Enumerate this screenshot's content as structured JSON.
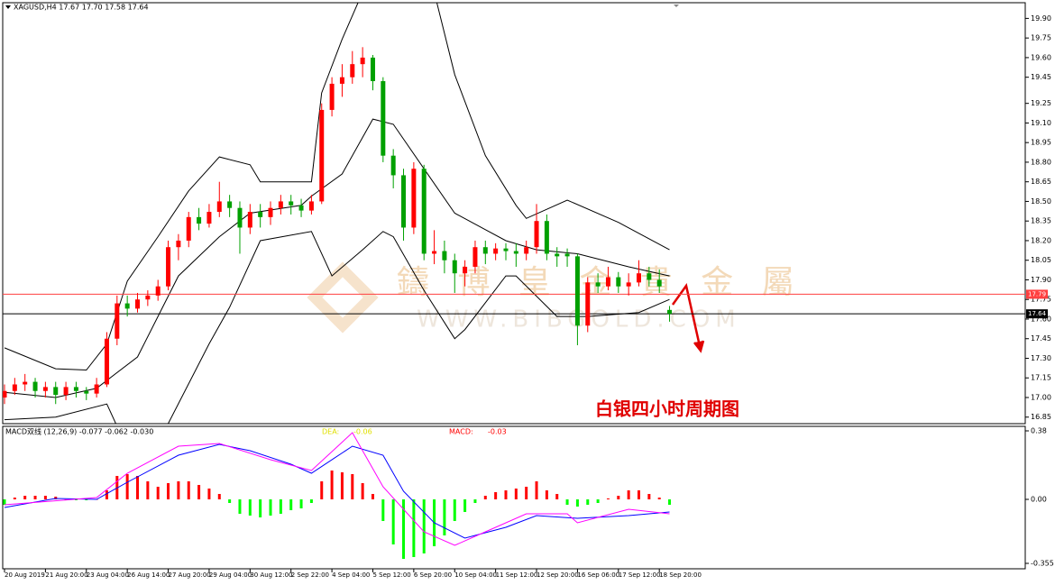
{
  "chart_data": [
    {
      "type": "candlestick",
      "title": "XAGUSD,H4  17.67 17.70 17.58 17.64",
      "annotation": "白银四小时周期图",
      "watermark": "鑄 博 皇 金 貴 金 屬",
      "watermark_url": "WWW.BIBGOLD.COM",
      "up_color": "#ff0000",
      "down_color": "#00a000",
      "band_color": "#000000",
      "xlim": [
        0,
        99.5
      ],
      "ylim": [
        16.8,
        20.02
      ],
      "xticks": [
        {
          "value": 0,
          "label": "20 Aug 2019"
        },
        {
          "value": 4,
          "label": "21 Aug 20:00"
        },
        {
          "value": 8,
          "label": "23 Aug 04:00"
        },
        {
          "value": 12,
          "label": "26 Aug 14:00"
        },
        {
          "value": 16,
          "label": "27 Aug 20:00"
        },
        {
          "value": 20,
          "label": "29 Aug 04:00"
        },
        {
          "value": 24,
          "label": "30 Aug 12:00"
        },
        {
          "value": 28,
          "label": "2 Sep 22:00"
        },
        {
          "value": 32,
          "label": "4 Sep 04:00"
        },
        {
          "value": 36,
          "label": "5 Sep 12:00"
        },
        {
          "value": 40,
          "label": "6 Sep 20:00"
        },
        {
          "value": 44,
          "label": "10 Sep 04:00"
        },
        {
          "value": 48,
          "label": "11 Sep 12:00"
        },
        {
          "value": 52,
          "label": "12 Sep 20:00"
        },
        {
          "value": 56,
          "label": "16 Sep 06:00"
        },
        {
          "value": 60,
          "label": "17 Sep 12:00"
        },
        {
          "value": 64,
          "label": "18 Sep 20:00"
        }
      ],
      "yticks": [
        {
          "value": 19.9,
          "label": "19.90"
        },
        19.75,
        {
          "value": 19.6,
          "label": "19.60"
        },
        19.45,
        19.25,
        {
          "value": 19.1,
          "label": "19.10"
        },
        18.95,
        {
          "value": 18.8,
          "label": "18.80"
        },
        18.65,
        {
          "value": 18.5,
          "label": "18.50"
        },
        18.35,
        {
          "value": 18.2,
          "label": "18.20"
        },
        18.05,
        {
          "value": 17.9,
          "label": "17.90"
        },
        17.75,
        {
          "value": 17.6,
          "label": "17.60"
        },
        17.45,
        {
          "value": 17.3,
          "label": "17.30"
        },
        17.15,
        {
          "value": 17.0,
          "label": "17.00"
        },
        16.85
      ],
      "hlines": [
        {
          "value": 17.79,
          "color": "#ff4040"
        },
        {
          "value": 17.64,
          "color": "#000000"
        }
      ],
      "ohlc": [
        [
          17.0,
          17.1,
          16.95,
          17.05
        ],
        [
          17.05,
          17.15,
          17.02,
          17.1
        ],
        [
          17.1,
          17.18,
          17.05,
          17.12
        ],
        [
          17.12,
          17.15,
          17.0,
          17.05
        ],
        [
          17.05,
          17.12,
          17.0,
          17.08
        ],
        [
          17.08,
          17.12,
          16.95,
          17.02
        ],
        [
          17.02,
          17.12,
          16.98,
          17.08
        ],
        [
          17.08,
          17.12,
          17.0,
          17.05
        ],
        [
          17.05,
          17.08,
          16.98,
          17.03
        ],
        [
          17.03,
          17.15,
          17.0,
          17.1
        ],
        [
          17.1,
          17.5,
          17.08,
          17.45
        ],
        [
          17.45,
          17.78,
          17.4,
          17.72
        ],
        [
          17.72,
          17.78,
          17.62,
          17.68
        ],
        [
          17.68,
          17.8,
          17.65,
          17.75
        ],
        [
          17.75,
          17.82,
          17.7,
          17.78
        ],
        [
          17.78,
          17.9,
          17.74,
          17.85
        ],
        [
          17.85,
          18.2,
          17.82,
          18.15
        ],
        [
          18.15,
          18.25,
          18.05,
          18.2
        ],
        [
          18.2,
          18.42,
          18.15,
          18.38
        ],
        [
          18.38,
          18.45,
          18.28,
          18.33
        ],
        [
          18.33,
          18.48,
          18.3,
          18.42
        ],
        [
          18.42,
          18.65,
          18.38,
          18.5
        ],
        [
          18.5,
          18.55,
          18.38,
          18.45
        ],
        [
          18.45,
          18.5,
          18.1,
          18.3
        ],
        [
          18.3,
          18.48,
          18.25,
          18.42
        ],
        [
          18.42,
          18.48,
          18.3,
          18.38
        ],
        [
          18.38,
          18.5,
          18.32,
          18.45
        ],
        [
          18.45,
          18.55,
          18.4,
          18.5
        ],
        [
          18.5,
          18.55,
          18.4,
          18.47
        ],
        [
          18.47,
          18.52,
          18.38,
          18.43
        ],
        [
          18.43,
          18.55,
          18.4,
          18.5
        ],
        [
          18.5,
          19.25,
          18.48,
          19.2
        ],
        [
          19.2,
          19.45,
          19.15,
          19.4
        ],
        [
          19.4,
          19.55,
          19.3,
          19.45
        ],
        [
          19.45,
          19.65,
          19.4,
          19.55
        ],
        [
          19.55,
          19.68,
          19.45,
          19.6
        ],
        [
          19.6,
          19.62,
          19.35,
          19.42
        ],
        [
          19.42,
          19.45,
          18.8,
          18.85
        ],
        [
          18.85,
          18.9,
          18.6,
          18.7
        ],
        [
          18.7,
          18.75,
          18.2,
          18.3
        ],
        [
          18.3,
          18.8,
          18.25,
          18.75
        ],
        [
          18.75,
          18.78,
          18.05,
          18.1
        ],
        [
          18.1,
          18.28,
          18.02,
          18.12
        ],
        [
          18.12,
          18.2,
          17.95,
          18.05
        ],
        [
          18.05,
          18.1,
          17.8,
          17.95
        ],
        [
          17.95,
          18.05,
          17.85,
          18.0
        ],
        [
          18.0,
          18.2,
          17.95,
          18.15
        ],
        [
          18.15,
          18.2,
          18.02,
          18.1
        ],
        [
          18.1,
          18.18,
          18.05,
          18.14
        ],
        [
          18.14,
          18.18,
          18.05,
          18.12
        ],
        [
          18.12,
          18.18,
          18.0,
          18.1
        ],
        [
          18.1,
          18.2,
          18.05,
          18.15
        ],
        [
          18.15,
          18.48,
          18.1,
          18.35
        ],
        [
          18.35,
          18.4,
          18.05,
          18.1
        ],
        [
          18.1,
          18.15,
          18.0,
          18.08
        ],
        [
          18.1,
          18.14,
          18.0,
          18.08
        ],
        [
          18.08,
          18.1,
          17.4,
          17.55
        ],
        [
          17.55,
          17.92,
          17.5,
          17.88
        ],
        [
          17.88,
          17.95,
          17.8,
          17.85
        ],
        [
          17.85,
          18.0,
          17.82,
          17.92
        ],
        [
          17.92,
          17.96,
          17.8,
          17.85
        ],
        [
          17.85,
          17.95,
          17.78,
          17.88
        ],
        [
          17.88,
          18.05,
          17.85,
          17.95
        ],
        [
          17.95,
          18.0,
          17.85,
          17.9
        ],
        [
          17.9,
          17.98,
          17.8,
          17.85
        ],
        [
          17.67,
          17.7,
          17.58,
          17.64
        ]
      ],
      "bands": [
        {
          "x": [
            0,
            5,
            8,
            10,
            12,
            15,
            18,
            21,
            24,
            25,
            30,
            31,
            33,
            35,
            42,
            44,
            47,
            50,
            51,
            55,
            60,
            65
          ],
          "values": [
            17.38,
            17.22,
            17.21,
            17.41,
            17.89,
            18.23,
            18.58,
            18.84,
            18.78,
            18.65,
            18.65,
            19.33,
            19.74,
            20.1,
            20.1,
            19.47,
            18.85,
            18.47,
            18.37,
            18.51,
            18.34,
            18.13
          ]
        },
        {
          "x": [
            0,
            5,
            9,
            13,
            17,
            21,
            24,
            29,
            30,
            33,
            36,
            38,
            41,
            44,
            49,
            52,
            56,
            61,
            65
          ],
          "values": [
            17.04,
            17.0,
            17.07,
            17.31,
            17.93,
            18.23,
            18.41,
            18.47,
            18.54,
            18.71,
            19.13,
            19.09,
            18.75,
            18.41,
            18.2,
            18.13,
            18.1,
            18.0,
            17.93
          ]
        },
        {
          "x": [
            0,
            5,
            10,
            11,
            16,
            20,
            22,
            25,
            30,
            32,
            35,
            37,
            38,
            41,
            44,
            45,
            49,
            50,
            54,
            57,
            62,
            65
          ],
          "values": [
            16.83,
            16.85,
            16.95,
            16.78,
            16.8,
            17.41,
            17.69,
            18.2,
            18.27,
            17.93,
            18.13,
            18.27,
            18.23,
            17.82,
            17.45,
            17.52,
            17.93,
            17.93,
            17.62,
            17.62,
            17.65,
            17.75
          ]
        }
      ]
    },
    {
      "type": "macd",
      "title": "MACD双线 (12,26,9) -0.077 -0.062 -0.030",
      "dea_label": "DEA:",
      "dea_value": "-0.06",
      "macd_label": "MACD:",
      "macd_value": "-0.03",
      "xlim": [
        0,
        99.5
      ],
      "ylim": [
        -0.385,
        0.405
      ],
      "yticks": [
        0.38,
        {
          "value": 0,
          "label": "0.00"
        },
        -0.355
      ],
      "up_color": "#ff0000",
      "down_color": "#00ff00",
      "values": [
        -0.03,
        0.01,
        0.02,
        0.02,
        0.02,
        0.015,
        0.0,
        -0.005,
        -0.005,
        0.0,
        0.05,
        0.13,
        0.14,
        0.13,
        0.1,
        0.07,
        0.09,
        0.1,
        0.1,
        0.08,
        0.06,
        0.03,
        -0.02,
        -0.08,
        -0.09,
        -0.1,
        -0.09,
        -0.08,
        -0.06,
        -0.05,
        -0.02,
        0.1,
        0.16,
        0.15,
        0.14,
        0.09,
        0.03,
        -0.12,
        -0.25,
        -0.33,
        -0.32,
        -0.3,
        -0.26,
        -0.2,
        -0.12,
        -0.07,
        -0.02,
        0.02,
        0.04,
        0.05,
        0.06,
        0.07,
        0.1,
        0.05,
        0.03,
        -0.03,
        -0.04,
        -0.03,
        -0.02,
        0.005,
        0.02,
        0.05,
        0.05,
        0.03,
        0.01,
        -0.03
      ],
      "lines": [
        {
          "color": "#0000ff",
          "x": [
            0,
            5,
            9,
            12,
            17,
            21,
            24,
            28,
            30,
            34,
            37,
            39,
            42,
            45,
            49,
            52,
            56,
            61,
            65
          ],
          "values": [
            -0.045,
            0.005,
            0.0,
            0.095,
            0.245,
            0.305,
            0.27,
            0.195,
            0.145,
            0.295,
            0.245,
            0.045,
            -0.13,
            -0.215,
            -0.155,
            -0.09,
            -0.105,
            -0.09,
            -0.07
          ]
        },
        {
          "color": "#ff00ff",
          "x": [
            0,
            9,
            12,
            17,
            21,
            26,
            30,
            34,
            37,
            41,
            44,
            47,
            51,
            55,
            56,
            61,
            65
          ],
          "values": [
            -0.03,
            0.01,
            0.145,
            0.295,
            0.31,
            0.22,
            0.16,
            0.37,
            0.07,
            -0.18,
            -0.255,
            -0.18,
            -0.08,
            -0.08,
            -0.13,
            -0.055,
            -0.08
          ]
        }
      ]
    }
  ]
}
